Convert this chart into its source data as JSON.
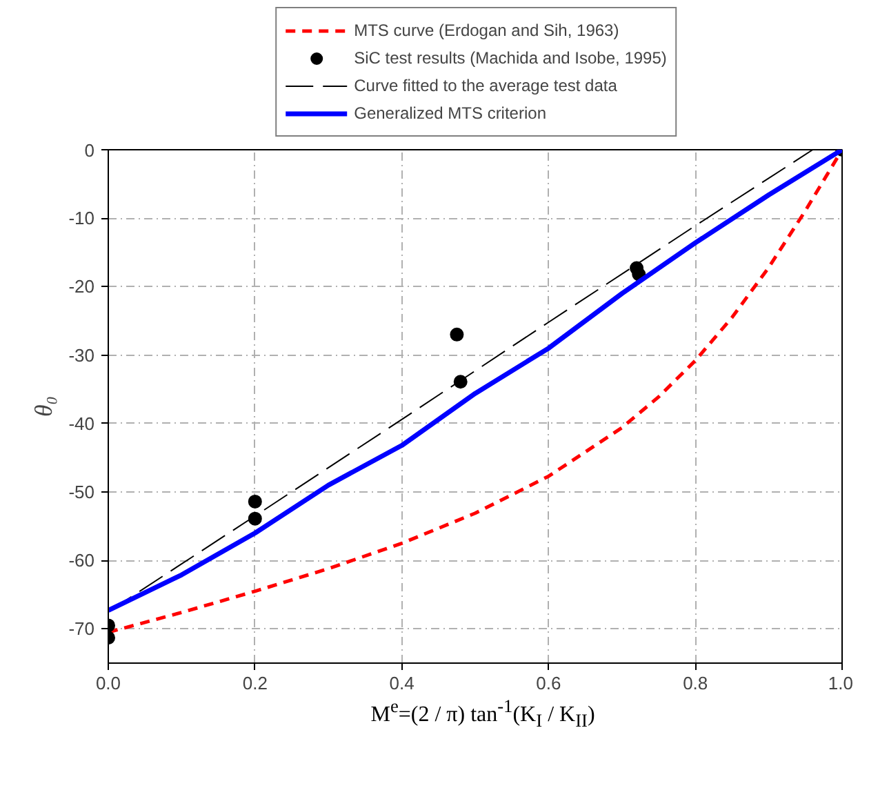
{
  "chart_data": {
    "type": "line",
    "xlabel": "M$^{e}$=(2 / π) tan$^{-1}$(K$_{I}$ / K$_{II}$)",
    "ylabel": "θ₀",
    "xlim": [
      0,
      1
    ],
    "ylim": [
      -75,
      0
    ],
    "xticks": [
      {
        "value": 0,
        "label": "0.0"
      },
      0.2,
      0.4,
      0.6,
      0.8,
      {
        "value": 1,
        "label": "1.0"
      }
    ],
    "yticks": [
      0,
      -10,
      -20,
      -30,
      -40,
      -50,
      -60,
      -70
    ],
    "grid": true,
    "legend": "top",
    "series": [
      {
        "name": "MTS curve (Erdogan and Sih, 1963)",
        "color": "#ff0000",
        "line_style": "dashed",
        "x": [
          0,
          0.1,
          0.2,
          0.3,
          0.4,
          0.5,
          0.6,
          0.7,
          0.75,
          0.8,
          0.85,
          0.9,
          0.95,
          1.0
        ],
        "values": [
          -70.5,
          -67.6,
          -64.5,
          -61.2,
          -57.5,
          -53.1,
          -47.7,
          -40.6,
          -36.1,
          -30.8,
          -24.5,
          -17.2,
          -8.9,
          0
        ]
      },
      {
        "name": "SiC test results (Machida and Isobe, 1995)",
        "type": "scatter",
        "color": "#000000",
        "marker": "circle",
        "x": [
          0,
          0,
          0.2,
          0.2,
          0.475,
          0.48,
          0.72,
          0.723,
          1.0
        ],
        "values": [
          -69.5,
          -71.3,
          -51.4,
          -53.9,
          -27.0,
          -33.9,
          -17.3,
          -18.2,
          0
        ]
      },
      {
        "name": "Curve fitted to the average test data",
        "color": "#000000",
        "line_style": "dashed",
        "x": [
          0,
          0.2,
          0.4,
          0.6,
          0.8,
          0.96
        ],
        "values": [
          -67.5,
          -53.5,
          -39.4,
          -25.2,
          -11.1,
          0
        ]
      },
      {
        "name": "Generalized MTS criterion",
        "color": "#0000ff",
        "line_style": "solid",
        "x": [
          0,
          0.1,
          0.2,
          0.3,
          0.4,
          0.5,
          0.6,
          0.7,
          0.8,
          0.9,
          1.0
        ],
        "values": [
          -67.3,
          -62.1,
          -56.0,
          -49.0,
          -43.2,
          -35.6,
          -29.0,
          -21.0,
          -13.6,
          -6.6,
          0
        ]
      }
    ]
  }
}
